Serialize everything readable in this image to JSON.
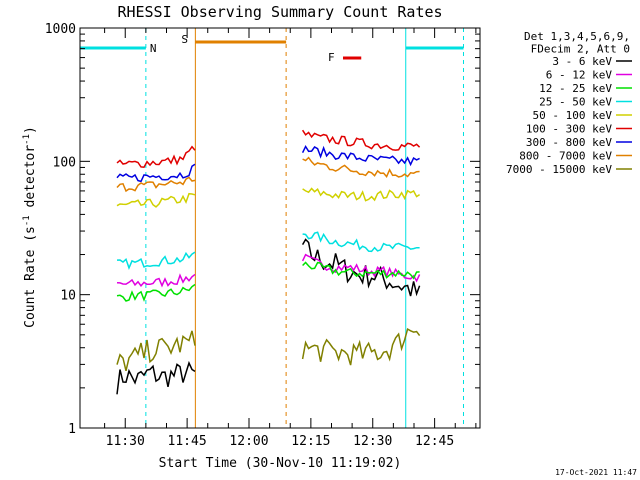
{
  "chart_data": {
    "type": "line",
    "title": "RHESSI Observing Summary Count Rates",
    "xlabel": "Start Time (30-Nov-10 11:19:02)",
    "ylabel_pre": "Count Rate (s",
    "ylabel_exp1": "-1",
    "ylabel_mid": " detector",
    "ylabel_exp2": "-1",
    "ylabel_post": ")",
    "xlim": [
      "11:19:02",
      "12:56:00"
    ],
    "ylim": [
      1,
      1000
    ],
    "yscale": "log",
    "x_ticks": [
      "11:30",
      "11:45",
      "12:00",
      "12:15",
      "12:30",
      "12:45"
    ],
    "y_ticks": [
      "1",
      "10",
      "100",
      "1000"
    ],
    "legend_header": [
      "Det 1,3,4,5,6,9,",
      "FDecim 2, Att 0"
    ],
    "legend_placement": "right, outside plot",
    "footer_timestamp": "17-Oct-2021 11:47",
    "flags": [
      {
        "label": "N",
        "color": "#00e0e0",
        "start": "11:19:02",
        "end": "11:35:00"
      },
      {
        "label": "S",
        "color": "#e08000",
        "start": "11:47:00",
        "end": "12:09:00"
      },
      {
        "label": "F",
        "color": "#e00000",
        "start": "12:24:00",
        "end": "12:26:00"
      },
      {
        "label": "",
        "color": "#00e0e0",
        "start": "12:38:00",
        "end": "12:52:00"
      }
    ],
    "event_lines": [
      {
        "time": "11:19:02",
        "color": "#00e0e0",
        "style": "solid"
      },
      {
        "time": "11:35:00",
        "color": "#00e0e0",
        "style": "dashed"
      },
      {
        "time": "11:47:00",
        "color": "#e08000",
        "style": "solid"
      },
      {
        "time": "12:09:00",
        "color": "#e08000",
        "style": "dashed"
      },
      {
        "time": "12:38:00",
        "color": "#00e0e0",
        "style": "solid"
      },
      {
        "time": "12:52:00",
        "color": "#00e0e0",
        "style": "dashed"
      }
    ],
    "series": [
      {
        "name": "3 - 6 keV",
        "color": "#000000",
        "segments": [
          {
            "x": [
              "11:28:00",
              "11:30:00",
              "11:33:00",
              "11:36:00",
              "11:39:00",
              "11:42:00",
              "11:45:00",
              "11:47:00"
            ],
            "y": [
              2.2,
              2.5,
              2.3,
              2.6,
              2.4,
              2.5,
              2.6,
              2.5
            ]
          },
          {
            "x": [
              "12:13:00",
              "12:15:00",
              "12:18:00",
              "12:21:00",
              "12:24:00",
              "12:27:00",
              "12:30:00",
              "12:33:00",
              "12:36:00",
              "12:39:00",
              "12:42:00"
            ],
            "y": [
              23,
              20,
              18,
              17,
              15,
              14,
              14,
              13,
              12,
              11,
              9.8
            ]
          }
        ]
      },
      {
        "name": "6 - 12 keV",
        "color": "#e000e0",
        "segments": [
          {
            "x": [
              "11:28:00",
              "11:32:00",
              "11:36:00",
              "11:40:00",
              "11:44:00",
              "11:47:00"
            ],
            "y": [
              12,
              12,
              12.3,
              12.5,
              13,
              14
            ]
          },
          {
            "x": [
              "12:13:00",
              "12:17:00",
              "12:21:00",
              "12:25:00",
              "12:29:00",
              "12:33:00",
              "12:37:00",
              "12:42:00"
            ],
            "y": [
              19,
              17,
              16,
              16,
              15,
              15,
              14,
              13.5
            ]
          }
        ]
      },
      {
        "name": "12 - 25 keV",
        "color": "#00e000",
        "segments": [
          {
            "x": [
              "11:28:00",
              "11:32:00",
              "11:36:00",
              "11:40:00",
              "11:44:00",
              "11:47:00"
            ],
            "y": [
              9.5,
              9.8,
              9.9,
              10.2,
              10.6,
              11.5
            ]
          },
          {
            "x": [
              "12:13:00",
              "12:17:00",
              "12:21:00",
              "12:25:00",
              "12:29:00",
              "12:33:00",
              "12:37:00",
              "12:42:00"
            ],
            "y": [
              17,
              16,
              15,
              14.5,
              14.5,
              14.5,
              14.5,
              14
            ]
          }
        ]
      },
      {
        "name": "25 - 50 keV",
        "color": "#00e0e0",
        "segments": [
          {
            "x": [
              "11:28:00",
              "11:32:00",
              "11:36:00",
              "11:40:00",
              "11:44:00",
              "11:47:00"
            ],
            "y": [
              17,
              17.2,
              17.5,
              18,
              18.5,
              20
            ]
          },
          {
            "x": [
              "12:13:00",
              "12:17:00",
              "12:21:00",
              "12:25:00",
              "12:29:00",
              "12:33:00",
              "12:37:00",
              "12:42:00"
            ],
            "y": [
              29,
              27,
              25,
              24,
              23,
              22.5,
              22.5,
              22.5
            ]
          }
        ]
      },
      {
        "name": "50 - 100 keV",
        "color": "#d0d000",
        "segments": [
          {
            "x": [
              "11:28:00",
              "11:32:00",
              "11:36:00",
              "11:40:00",
              "11:44:00",
              "11:47:00"
            ],
            "y": [
              46,
              47,
              48,
              50,
              52,
              55
            ]
          },
          {
            "x": [
              "12:13:00",
              "12:17:00",
              "12:21:00",
              "12:25:00",
              "12:29:00",
              "12:33:00",
              "12:37:00",
              "12:42:00"
            ],
            "y": [
              60,
              58,
              56,
              55,
              55,
              56,
              57,
              58
            ]
          }
        ]
      },
      {
        "name": "100 - 300 keV",
        "color": "#e00000",
        "segments": [
          {
            "x": [
              "11:28:00",
              "11:32:00",
              "11:36:00",
              "11:40:00",
              "11:44:00",
              "11:47:00"
            ],
            "y": [
              94,
              96,
              98,
              100,
              105,
              130
            ]
          },
          {
            "x": [
              "12:13:00",
              "12:17:00",
              "12:21:00",
              "12:25:00",
              "12:29:00",
              "12:33:00",
              "12:37:00",
              "12:42:00"
            ],
            "y": [
              160,
              150,
              145,
              140,
              135,
              132,
              130,
              130
            ]
          }
        ]
      },
      {
        "name": "300 - 800 keV",
        "color": "#0000e0",
        "segments": [
          {
            "x": [
              "11:28:00",
              "11:32:00",
              "11:36:00",
              "11:40:00",
              "11:44:00",
              "11:47:00"
            ],
            "y": [
              74,
              75,
              77,
              78,
              80,
              90
            ]
          },
          {
            "x": [
              "12:13:00",
              "12:17:00",
              "12:21:00",
              "12:25:00",
              "12:29:00",
              "12:33:00",
              "12:37:00",
              "12:42:00"
            ],
            "y": [
              125,
              118,
              112,
              108,
              104,
              102,
              100,
              100
            ]
          }
        ]
      },
      {
        "name": "800 - 7000 keV",
        "color": "#e08000",
        "segments": [
          {
            "x": [
              "11:28:00",
              "11:32:00",
              "11:36:00",
              "11:40:00",
              "11:44:00",
              "11:47:00"
            ],
            "y": [
              64,
              65,
              66,
              68,
              70,
              75
            ]
          },
          {
            "x": [
              "12:13:00",
              "12:17:00",
              "12:21:00",
              "12:25:00",
              "12:29:00",
              "12:33:00",
              "12:37:00",
              "12:42:00"
            ],
            "y": [
              102,
              95,
              90,
              86,
              84,
              82,
              81,
              80
            ]
          }
        ]
      },
      {
        "name": "7000 - 15000 keV",
        "color": "#808000",
        "segments": [
          {
            "x": [
              "11:28:00",
              "11:31:00",
              "11:34:00",
              "11:37:00",
              "11:40:00",
              "11:43:00",
              "11:47:00"
            ],
            "y": [
              3.0,
              3.2,
              3.6,
              3.9,
              4.0,
              4.2,
              4.5
            ]
          },
          {
            "x": [
              "12:13:00",
              "12:17:00",
              "12:21:00",
              "12:25:00",
              "12:29:00",
              "12:33:00",
              "12:36:00",
              "12:39:00",
              "12:42:00"
            ],
            "y": [
              4.0,
              3.8,
              3.7,
              3.6,
              3.6,
              3.8,
              4.3,
              5.5,
              6.0
            ]
          }
        ]
      }
    ]
  }
}
